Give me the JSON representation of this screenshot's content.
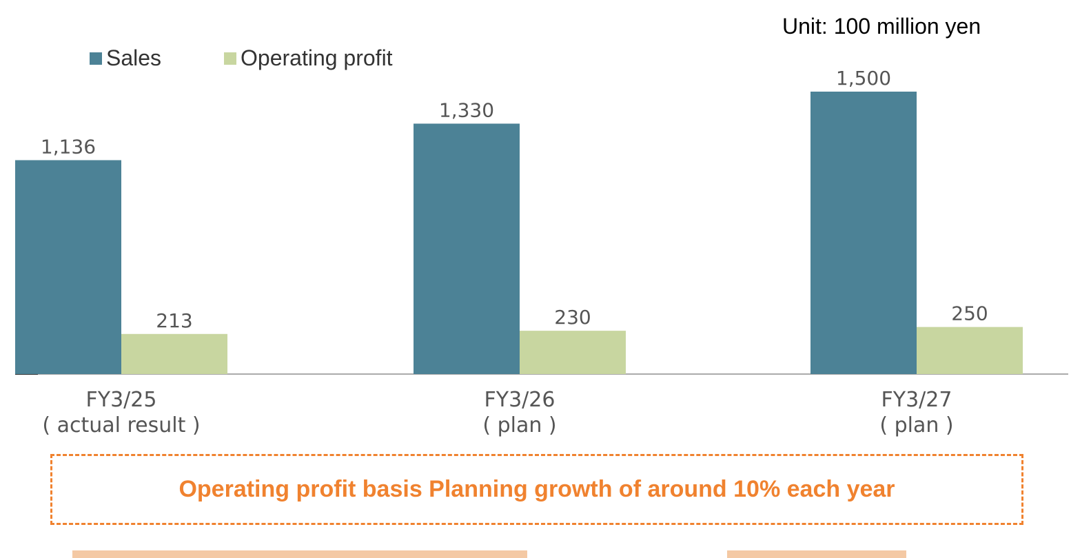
{
  "unit_label": "Unit: 100 million yen",
  "legend": {
    "sales": "Sales",
    "operating_profit": "Operating profit"
  },
  "colors": {
    "sales": "#4c8296",
    "operating_profit": "#c8d6a0",
    "axis": "#aaaaaa",
    "text": "#555555",
    "callout": "#f0822f"
  },
  "chart_data": {
    "type": "bar",
    "categories": [
      [
        "FY3/25",
        "( actual result )"
      ],
      [
        "FY3/26",
        "( plan )"
      ],
      [
        "FY3/27",
        "( plan )"
      ]
    ],
    "series": [
      {
        "name": "Sales",
        "values": [
          1136,
          1330,
          1500
        ],
        "labels": [
          "1,136",
          "1,330",
          "1,500"
        ]
      },
      {
        "name": "Operating profit",
        "values": [
          213,
          230,
          250
        ],
        "labels": [
          "213",
          "230",
          "250"
        ]
      }
    ],
    "title": "",
    "xlabel": "",
    "ylabel": "",
    "ylim": [
      -400,
      1500
    ],
    "grid": false,
    "legend_position": "top-left"
  },
  "callout": {
    "text": "Operating profit basis Planning growth of around 10% each year"
  }
}
